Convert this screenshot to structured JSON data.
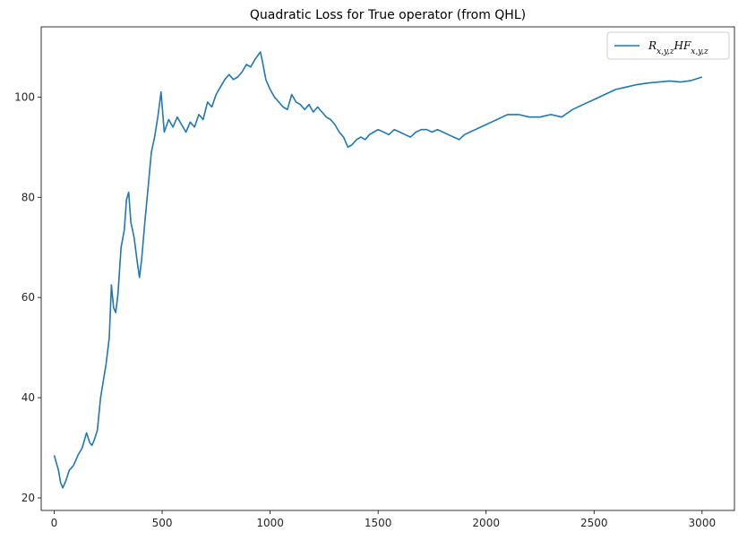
{
  "chart_data": {
    "type": "line",
    "title": "Quadratic Loss for True operator (from QHL)",
    "xlabel": "",
    "ylabel": "",
    "xlim": [
      -60,
      3150
    ],
    "ylim": [
      17.5,
      114
    ],
    "grid": false,
    "legend_placement": "top-right",
    "xticks": [
      0,
      500,
      1000,
      1500,
      2000,
      2500,
      3000
    ],
    "yticks": [
      20,
      40,
      60,
      80,
      100
    ],
    "series": [
      {
        "name": "R_{x,y,z}HF_{x,y,z}",
        "legend_base": "R",
        "legend_sub1": "x,y,z",
        "legend_mid": "HF",
        "legend_sub2": "x,y,z",
        "color": "#1f77b4",
        "x": [
          0,
          10,
          20,
          30,
          40,
          55,
          70,
          90,
          110,
          130,
          150,
          165,
          175,
          185,
          200,
          215,
          230,
          240,
          255,
          265,
          275,
          285,
          295,
          310,
          325,
          335,
          345,
          355,
          370,
          385,
          395,
          405,
          420,
          435,
          450,
          465,
          480,
          495,
          510,
          530,
          550,
          570,
          590,
          610,
          630,
          650,
          670,
          690,
          710,
          730,
          750,
          770,
          790,
          810,
          830,
          850,
          870,
          890,
          910,
          930,
          955,
          965,
          980,
          1000,
          1020,
          1040,
          1060,
          1080,
          1100,
          1120,
          1140,
          1160,
          1180,
          1200,
          1220,
          1240,
          1260,
          1280,
          1300,
          1320,
          1340,
          1360,
          1380,
          1400,
          1420,
          1440,
          1460,
          1480,
          1500,
          1525,
          1550,
          1575,
          1600,
          1625,
          1650,
          1675,
          1700,
          1725,
          1750,
          1775,
          1800,
          1825,
          1850,
          1875,
          1900,
          1925,
          1950,
          1975,
          2000,
          2025,
          2050,
          2075,
          2100,
          2150,
          2200,
          2250,
          2300,
          2350,
          2400,
          2450,
          2500,
          2550,
          2600,
          2650,
          2700,
          2750,
          2800,
          2850,
          2900,
          2950,
          3000
        ],
        "y": [
          28.5,
          27.0,
          25.5,
          23.0,
          22.0,
          23.5,
          25.5,
          26.5,
          28.5,
          30.0,
          33.0,
          31.0,
          30.5,
          31.5,
          33.5,
          40.0,
          44.0,
          46.5,
          52.0,
          62.5,
          58.0,
          57.0,
          60.5,
          70.0,
          73.5,
          79.5,
          81.0,
          75.0,
          72.0,
          67.0,
          64.0,
          67.5,
          75.0,
          82.0,
          89.0,
          92.0,
          96.0,
          101.0,
          93.0,
          95.5,
          94.0,
          96.0,
          94.5,
          93.0,
          95.0,
          94.0,
          96.5,
          95.5,
          99.0,
          98.0,
          100.5,
          102.0,
          103.5,
          104.5,
          103.5,
          104.0,
          105.0,
          106.5,
          106.0,
          107.5,
          109.0,
          107.0,
          103.5,
          101.5,
          100.0,
          99.0,
          98.0,
          97.5,
          100.5,
          99.0,
          98.5,
          97.5,
          98.5,
          97.0,
          98.0,
          97.0,
          96.0,
          95.5,
          94.5,
          93.0,
          92.0,
          90.0,
          90.5,
          91.5,
          92.0,
          91.5,
          92.5,
          93.0,
          93.5,
          93.0,
          92.5,
          93.5,
          93.0,
          92.5,
          92.0,
          93.0,
          93.5,
          93.5,
          93.0,
          93.5,
          93.0,
          92.5,
          92.0,
          91.5,
          92.5,
          93.0,
          93.5,
          94.0,
          94.5,
          95.0,
          95.5,
          96.0,
          96.5,
          96.5,
          96.0,
          96.0,
          96.5,
          96.0,
          97.5,
          98.5,
          99.5,
          100.5,
          101.5,
          102.0,
          102.5,
          102.8,
          103.0,
          103.2,
          103.0,
          103.3,
          104.0
        ]
      }
    ]
  }
}
